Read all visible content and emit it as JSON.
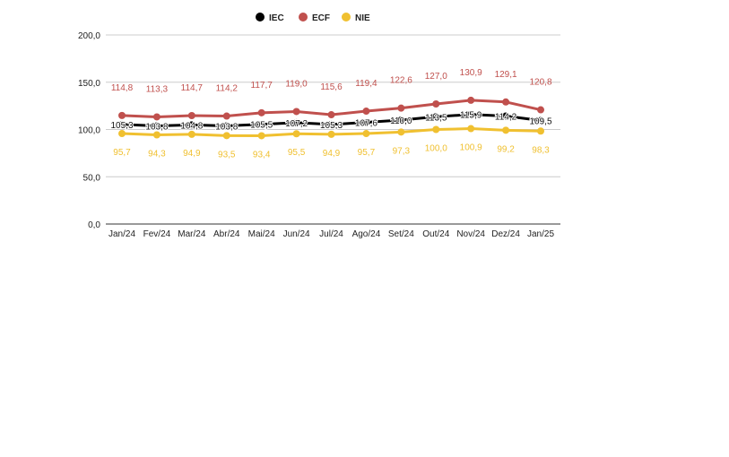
{
  "chart_data": {
    "type": "line",
    "title": "",
    "xlabel": "",
    "ylabel": "",
    "ylim": [
      0,
      200
    ],
    "yticks": [
      "0,0",
      "50,0",
      "100,0",
      "150,0",
      "200,0"
    ],
    "ytick_values": [
      0,
      50,
      100,
      150,
      200
    ],
    "grid": true,
    "legend_position": "top-center",
    "categories": [
      "Jan/24",
      "Fev/24",
      "Mar/24",
      "Abr/24",
      "Mai/24",
      "Jun/24",
      "Jul/24",
      "Ago/24",
      "Set/24",
      "Out/24",
      "Nov/24",
      "Dez/24",
      "Jan/25"
    ],
    "series": [
      {
        "name": "IEC",
        "color": "#000000",
        "label_pos": "center",
        "values": [
          105.3,
          103.8,
          104.8,
          103.8,
          105.5,
          107.2,
          105.3,
          107.6,
          110.0,
          113.5,
          115.9,
          114.2,
          109.5
        ]
      },
      {
        "name": "ECF",
        "color": "#c0504d",
        "label_pos": "above",
        "values": [
          114.8,
          113.3,
          114.7,
          114.2,
          117.7,
          119.0,
          115.6,
          119.4,
          122.6,
          127.0,
          130.9,
          129.1,
          120.8
        ]
      },
      {
        "name": "NIE",
        "color": "#f0c030",
        "label_pos": "below",
        "values": [
          95.7,
          94.3,
          94.9,
          93.5,
          93.4,
          95.5,
          94.9,
          95.7,
          97.3,
          100.0,
          100.9,
          99.2,
          98.3
        ]
      }
    ]
  }
}
